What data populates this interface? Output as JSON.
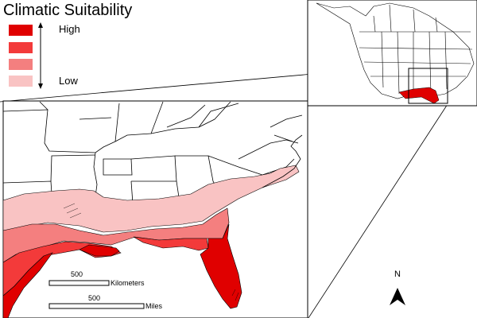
{
  "legend": {
    "title": "Climatic Suitability",
    "high_label": "High",
    "low_label": "Low",
    "classes": [
      {
        "level": "high",
        "color": "#e00000"
      },
      {
        "level": "medium-high",
        "color": "#f33a3a"
      },
      {
        "level": "medium-low",
        "color": "#f47f7f"
      },
      {
        "level": "low",
        "color": "#f9c3c3"
      }
    ]
  },
  "scalebar": {
    "km_value": "500",
    "km_unit": "Kilometers",
    "mi_value": "500",
    "mi_unit": "Miles"
  },
  "north_arrow": {
    "label": "N"
  },
  "colors": {
    "border": "#000000",
    "land": "#ffffff",
    "background": "#ffffff"
  }
}
